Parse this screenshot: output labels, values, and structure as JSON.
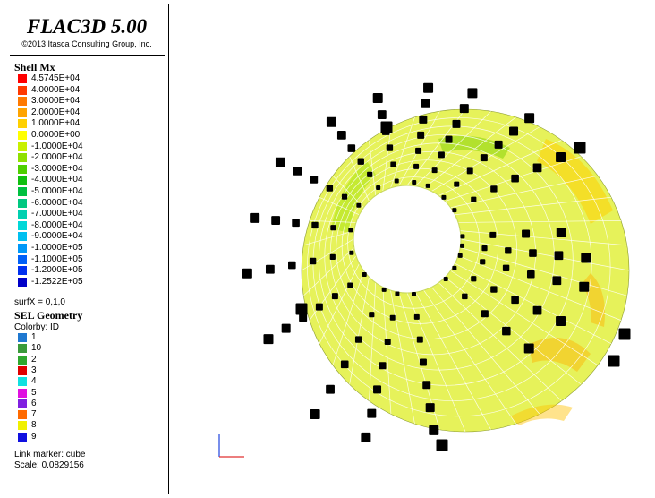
{
  "app": {
    "title": "FLAC3D 5.00",
    "copyright": "©2013 Itasca Consulting Group, Inc."
  },
  "contour": {
    "header": "Shell Mx",
    "entries": [
      {
        "label": "4.5745E+04",
        "color": "#ff0000"
      },
      {
        "label": "4.0000E+04",
        "color": "#ff3a00"
      },
      {
        "label": "3.0000E+04",
        "color": "#ff7a00"
      },
      {
        "label": "2.0000E+04",
        "color": "#ffa400"
      },
      {
        "label": "1.0000E+04",
        "color": "#ffd000"
      },
      {
        "label": "0.0000E+00",
        "color": "#ffff00"
      },
      {
        "label": "-1.0000E+04",
        "color": "#c8f000"
      },
      {
        "label": "-2.0000E+04",
        "color": "#8ee000"
      },
      {
        "label": "-3.0000E+04",
        "color": "#4ed000"
      },
      {
        "label": "-4.0000E+04",
        "color": "#10c010"
      },
      {
        "label": "-5.0000E+04",
        "color": "#00c040"
      },
      {
        "label": "-6.0000E+04",
        "color": "#00c880"
      },
      {
        "label": "-7.0000E+04",
        "color": "#00d0b0"
      },
      {
        "label": "-8.0000E+04",
        "color": "#00d8d8"
      },
      {
        "label": "-9.0000E+04",
        "color": "#00c0f0"
      },
      {
        "label": "-1.0000E+05",
        "color": "#0098f8"
      },
      {
        "label": "-1.1000E+05",
        "color": "#0060f8"
      },
      {
        "label": "-1.2000E+05",
        "color": "#0030f0"
      },
      {
        "label": "-1.2522E+05",
        "color": "#0000c8"
      }
    ],
    "surf": "surfX = 0,1,0"
  },
  "sel": {
    "header": "SEL Geometry",
    "colorby": "Colorby: ID",
    "entries": [
      {
        "label": "1",
        "color": "#1f78d0"
      },
      {
        "label": "10",
        "color": "#3a9a3a"
      },
      {
        "label": "2",
        "color": "#2ea82e"
      },
      {
        "label": "3",
        "color": "#e00000"
      },
      {
        "label": "4",
        "color": "#10e0e0"
      },
      {
        "label": "5",
        "color": "#e010e0"
      },
      {
        "label": "6",
        "color": "#8020e0"
      },
      {
        "label": "7",
        "color": "#ff6a00"
      },
      {
        "label": "8",
        "color": "#f0f000"
      },
      {
        "label": "9",
        "color": "#1010e0"
      }
    ],
    "link_marker": "Link marker: cube",
    "scale": "Scale: 0.0829156"
  },
  "colors": {
    "surface": "#e6f25a",
    "mesh": "#ffffff",
    "marker": "#000000",
    "axis_x": "#e03030",
    "axis_y": "#3050e0"
  }
}
